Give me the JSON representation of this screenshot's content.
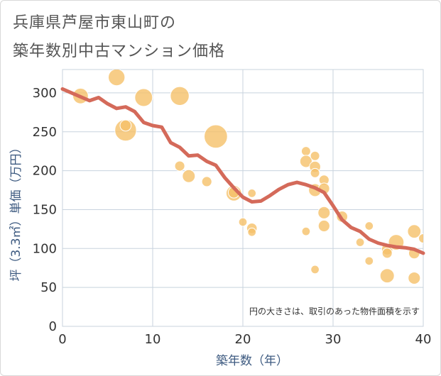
{
  "title": {
    "line1": "兵庫県芦屋市東山町の",
    "line2": "築年数別中古マンション価格"
  },
  "chart_data": {
    "type": "scatter",
    "xlabel": "築年数（年）",
    "ylabel": "坪（3.3㎡）単価（万円）",
    "xlim": [
      0,
      40
    ],
    "ylim": [
      0,
      330
    ],
    "xticks": [
      0,
      10,
      20,
      30,
      40
    ],
    "yticks": [
      0,
      50,
      100,
      150,
      200,
      250,
      300
    ],
    "grid": true,
    "note": "円の大きさは、取引のあった物件面積を示す",
    "colors": {
      "bubble": "#f5c069",
      "line": "#d46a5a",
      "grid": "#c8d3de"
    },
    "bubbles": [
      {
        "x": 2,
        "y": 296,
        "size": 3
      },
      {
        "x": 6,
        "y": 320,
        "size": 3.5
      },
      {
        "x": 7,
        "y": 252,
        "size": 6
      },
      {
        "x": 7,
        "y": 258,
        "size": 1.5
      },
      {
        "x": 9,
        "y": 294,
        "size": 4
      },
      {
        "x": 13,
        "y": 296,
        "size": 4.5
      },
      {
        "x": 13,
        "y": 206,
        "size": 1.2
      },
      {
        "x": 14,
        "y": 193,
        "size": 2
      },
      {
        "x": 16,
        "y": 186,
        "size": 1.2
      },
      {
        "x": 17,
        "y": 244,
        "size": 7
      },
      {
        "x": 19,
        "y": 171,
        "size": 3
      },
      {
        "x": 19,
        "y": 172,
        "size": 1.5
      },
      {
        "x": 20,
        "y": 134,
        "size": 0.8
      },
      {
        "x": 21,
        "y": 171,
        "size": 0.8
      },
      {
        "x": 21,
        "y": 126,
        "size": 1.3
      },
      {
        "x": 21,
        "y": 121,
        "size": 0.8
      },
      {
        "x": 27,
        "y": 225,
        "size": 1
      },
      {
        "x": 27,
        "y": 212,
        "size": 1.8
      },
      {
        "x": 27,
        "y": 122,
        "size": 0.8
      },
      {
        "x": 28,
        "y": 219,
        "size": 1
      },
      {
        "x": 28,
        "y": 205,
        "size": 1.5
      },
      {
        "x": 28,
        "y": 197,
        "size": 1
      },
      {
        "x": 28,
        "y": 175,
        "size": 2
      },
      {
        "x": 28,
        "y": 73,
        "size": 0.8
      },
      {
        "x": 29,
        "y": 188,
        "size": 1.2
      },
      {
        "x": 29,
        "y": 177,
        "size": 1.5
      },
      {
        "x": 29,
        "y": 146,
        "size": 1.8
      },
      {
        "x": 29,
        "y": 129,
        "size": 1.6
      },
      {
        "x": 31,
        "y": 141,
        "size": 1.5
      },
      {
        "x": 33,
        "y": 108,
        "size": 0.8
      },
      {
        "x": 34,
        "y": 129,
        "size": 0.8
      },
      {
        "x": 34,
        "y": 84,
        "size": 0.8
      },
      {
        "x": 36,
        "y": 99,
        "size": 1.5
      },
      {
        "x": 36,
        "y": 94,
        "size": 1.2
      },
      {
        "x": 36,
        "y": 65,
        "size": 2.5
      },
      {
        "x": 37,
        "y": 108,
        "size": 3
      },
      {
        "x": 39,
        "y": 122,
        "size": 2.2
      },
      {
        "x": 39,
        "y": 94,
        "size": 1.5
      },
      {
        "x": 39,
        "y": 62,
        "size": 1.8
      },
      {
        "x": 40,
        "y": 113,
        "size": 1
      }
    ],
    "line": {
      "x": [
        0,
        1,
        2,
        3,
        4,
        5,
        6,
        7,
        8,
        9,
        10,
        11,
        12,
        13,
        14,
        15,
        16,
        17,
        18,
        19,
        20,
        21,
        22,
        23,
        24,
        25,
        26,
        27,
        28,
        29,
        30,
        31,
        32,
        33,
        34,
        35,
        36,
        37,
        38,
        39,
        40
      ],
      "y": [
        305,
        300,
        295,
        290,
        294,
        286,
        280,
        282,
        276,
        262,
        258,
        256,
        236,
        230,
        219,
        220,
        212,
        207,
        191,
        178,
        166,
        160,
        161,
        168,
        176,
        182,
        185,
        182,
        178,
        172,
        155,
        137,
        127,
        122,
        112,
        107,
        104,
        102,
        101,
        99,
        94
      ]
    }
  }
}
